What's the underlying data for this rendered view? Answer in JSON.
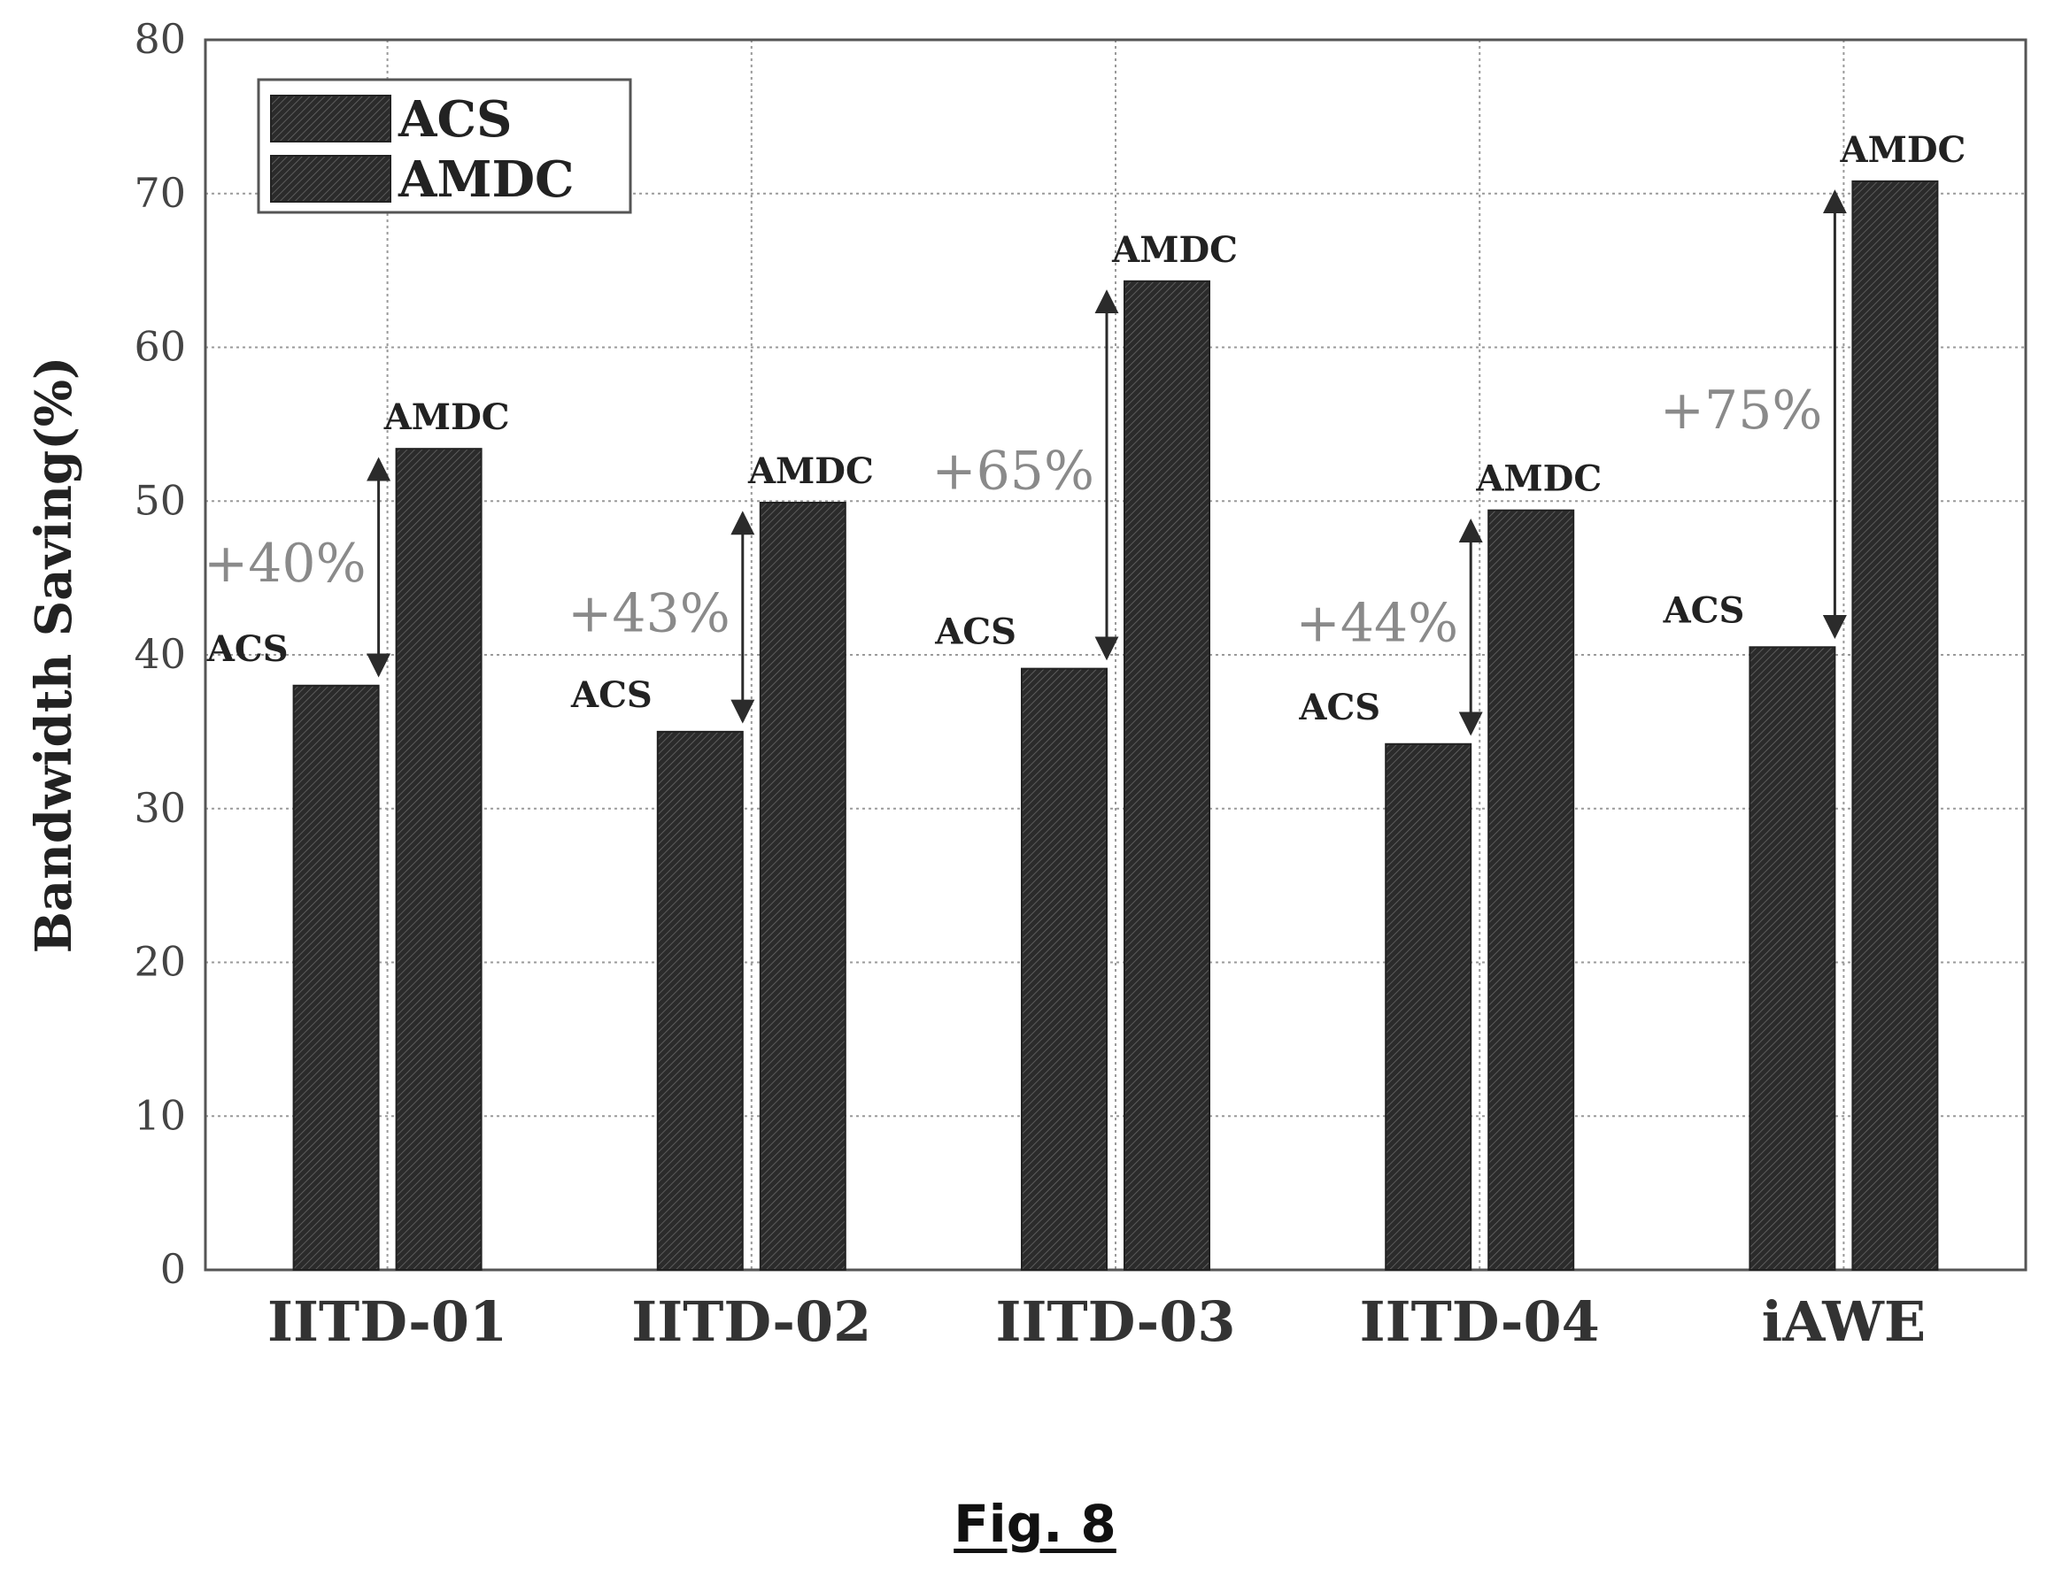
{
  "figure_caption": "Fig. 8",
  "chart_data": {
    "type": "bar",
    "title": "",
    "xlabel": "",
    "ylabel": "Bandwidth Saving(%)",
    "ylim": [
      0,
      80
    ],
    "yticks": [
      "0",
      "10",
      "20",
      "30",
      "40",
      "50",
      "60",
      "70",
      "80"
    ],
    "categories": [
      "IITD-01",
      "IITD-02",
      "IITD-03",
      "IITD-04",
      "iAWE"
    ],
    "series": [
      {
        "name": "ACS",
        "values": [
          38.0,
          35.0,
          39.1,
          34.2,
          40.5
        ],
        "bar_label": "ACS"
      },
      {
        "name": "AMDC",
        "values": [
          53.4,
          49.9,
          64.3,
          49.4,
          70.8
        ],
        "bar_label": "AMDC"
      }
    ],
    "improvements": [
      "+40%",
      "+43%",
      "+65%",
      "+44%",
      "+75%"
    ],
    "grid": true,
    "legend_position": "top-left",
    "colors": {
      "bar": "#2b2b2b",
      "grid": "#9a9a9a",
      "text": "#222222",
      "annotation": "#8a8a8a"
    }
  }
}
